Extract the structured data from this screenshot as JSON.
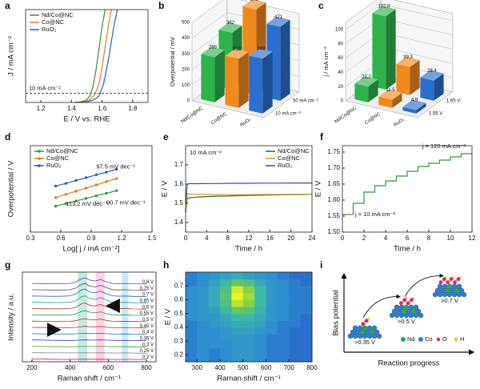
{
  "chart_data": [
    {
      "type": "line",
      "panel": "a",
      "xlabel": "E / V vs. RHE",
      "ylabel": "J / mA cm⁻²",
      "xlim": [
        1.1,
        1.9
      ],
      "xticks": [
        1.2,
        1.4,
        1.6,
        1.8
      ],
      "ylim": [
        0,
        100
      ],
      "legend": "upper left",
      "reference": {
        "value": 10,
        "label": "10 mA cm⁻²",
        "color": "#8b1a1a"
      },
      "series": [
        {
          "name": "Nd/Co@NC",
          "color": "#3a8f3a",
          "x": [
            1.42,
            1.46,
            1.5,
            1.52,
            1.54,
            1.56,
            1.58,
            1.6,
            1.62
          ],
          "values": [
            0,
            0.5,
            3,
            7,
            17,
            35,
            58,
            82,
            100
          ]
        },
        {
          "name": "Co@NC",
          "color": "#e07b2a",
          "x": [
            1.42,
            1.48,
            1.52,
            1.55,
            1.58,
            1.6,
            1.62,
            1.64,
            1.66
          ],
          "values": [
            0,
            0.5,
            3,
            8,
            20,
            38,
            60,
            82,
            100
          ]
        },
        {
          "name": "RuO₂",
          "color": "#2b5fb8",
          "x": [
            1.42,
            1.5,
            1.55,
            1.58,
            1.61,
            1.64,
            1.66,
            1.68,
            1.7
          ],
          "values": [
            0,
            0.5,
            3,
            7,
            20,
            45,
            65,
            85,
            100
          ]
        }
      ]
    },
    {
      "type": "bar3d",
      "panel": "b",
      "ylabel": "Overpotential / mV",
      "categories": [
        "Nd/Co@NC",
        "Co@NC",
        "RuO₂"
      ],
      "colors": [
        "#2db34a",
        "#f08a1c",
        "#2a6fd0"
      ],
      "ylim": [
        0,
        500
      ],
      "yticks": [
        0,
        100,
        200,
        300,
        400,
        500
      ],
      "series": [
        {
          "name": "10 mA cm⁻²",
          "values": [
            288,
            312,
            349
          ]
        },
        {
          "name": "50 mA cm⁻²",
          "values": [
            362,
            546,
            471
          ]
        }
      ]
    },
    {
      "type": "bar3d",
      "panel": "c",
      "ylabel": "j / mA cm⁻²",
      "categories": [
        "Nd/Co@NC",
        "Co@NC",
        "RuO₂"
      ],
      "colors": [
        "#2db34a",
        "#f08a1c",
        "#2a6fd0"
      ],
      "ylim": [
        0,
        110
      ],
      "yticks": [
        0,
        20,
        40,
        60,
        80,
        100
      ],
      "series": [
        {
          "name": "1.55 V",
          "values": [
            22.2,
            11.5,
            4.9
          ]
        },
        {
          "name": "1.65 V",
          "values": [
            102.8,
            39.3,
            28.4
          ]
        }
      ]
    },
    {
      "type": "line",
      "panel": "d",
      "markers": true,
      "xlabel": "Log[ j / mA cm⁻²]",
      "ylabel": "Overpotential / V",
      "xlim": [
        0.3,
        1.5
      ],
      "xticks": [
        0.3,
        0.6,
        0.9,
        1.2,
        1.5
      ],
      "ylim": [
        0.15,
        0.45
      ],
      "legend": "upper left",
      "x": [
        0.55,
        0.65,
        0.75,
        0.85,
        0.95,
        1.05,
        1.15
      ],
      "series": [
        {
          "name": "Nd/Co@NC",
          "color": "#2e9a3a",
          "values": [
            0.24,
            0.249,
            0.258,
            0.267,
            0.276,
            0.285,
            0.294
          ],
          "label": "90.7 mV dec⁻¹"
        },
        {
          "name": "Co@NC",
          "color": "#e07b2a",
          "values": [
            0.27,
            0.281,
            0.292,
            0.303,
            0.314,
            0.325,
            0.336
          ],
          "label": "113.2 mV dec⁻¹"
        },
        {
          "name": "RuO₂",
          "color": "#2b5fb8",
          "values": [
            0.31,
            0.319,
            0.329,
            0.339,
            0.349,
            0.358,
            0.368
          ],
          "label": "97.5 mV dec⁻¹"
        }
      ]
    },
    {
      "type": "line",
      "panel": "e",
      "xlabel": "Time / h",
      "ylabel": "E / V",
      "note": "10 mA cm⁻²",
      "xlim": [
        0,
        24
      ],
      "xticks": [
        0,
        4,
        8,
        12,
        16,
        20,
        24
      ],
      "ylim": [
        1.35,
        1.8
      ],
      "yticks": [
        1.4,
        1.5,
        1.6,
        1.7
      ],
      "legend": "upper right",
      "x": [
        0,
        0.3,
        1,
        2,
        4,
        6,
        8,
        10,
        12,
        14,
        16,
        18,
        20,
        22,
        24
      ],
      "series": [
        {
          "name": "Nd/Co@NC",
          "color": "#2f6e1f",
          "values": [
            1.45,
            1.525,
            1.53,
            1.532,
            1.535,
            1.537,
            1.538,
            1.54,
            1.541,
            1.542,
            1.543,
            1.544,
            1.545,
            1.546,
            1.547
          ]
        },
        {
          "name": "Co@NC",
          "color": "#c89a20",
          "values": [
            1.46,
            1.55,
            1.548,
            1.547,
            1.546,
            1.545,
            1.545,
            1.545,
            1.545,
            1.546,
            1.546,
            1.546,
            1.547,
            1.547,
            1.548
          ]
        },
        {
          "name": "RuO₂",
          "color": "#3050a0",
          "values": [
            1.5,
            1.6,
            1.603,
            1.602,
            1.603,
            1.603,
            1.604,
            1.604,
            1.604,
            1.605,
            1.605,
            1.605,
            1.606,
            1.606,
            1.606
          ]
        }
      ]
    },
    {
      "type": "line",
      "panel": "f",
      "xlabel": "Time / h",
      "ylabel": "E / V",
      "xlim": [
        0,
        12
      ],
      "xticks": [
        0,
        2,
        4,
        6,
        8,
        10,
        12
      ],
      "ylim": [
        1.5,
        1.77
      ],
      "yticks": [
        {
          "value": 1.5,
          "label": "1.50"
        },
        {
          "value": 1.55,
          "label": "1.55"
        },
        {
          "value": 1.6,
          "label": "1.60"
        },
        {
          "value": 1.65,
          "label": "1.65"
        },
        {
          "value": 1.7,
          "label": "1.70"
        },
        {
          "value": 1.75,
          "label": "1.75"
        }
      ],
      "x": [
        0,
        1,
        1,
        2,
        2,
        3,
        3,
        4,
        4,
        5,
        5,
        6,
        6,
        7,
        7,
        8,
        8,
        9,
        9,
        10,
        10,
        11,
        11,
        12
      ],
      "series": [
        {
          "color": "#2e9a3a",
          "start_label": "j = 10 mA cm⁻²",
          "end_label": "j = 120 mA cm⁻²",
          "values": [
            1.555,
            1.555,
            1.59,
            1.59,
            1.625,
            1.625,
            1.645,
            1.645,
            1.66,
            1.66,
            1.675,
            1.675,
            1.69,
            1.69,
            1.705,
            1.705,
            1.715,
            1.715,
            1.725,
            1.725,
            1.735,
            1.735,
            1.745,
            1.745
          ]
        }
      ]
    },
    {
      "type": "waterfall",
      "panel": "g",
      "xlabel": "Raman shift / cm⁻¹",
      "ylabel": "Intensity / a.u.",
      "xlim": [
        150,
        850
      ],
      "xticks": [
        200,
        400,
        600,
        800
      ],
      "bands": [
        {
          "range": [
            440,
            490
          ],
          "color": "#7fd0c0"
        },
        {
          "range": [
            535,
            580
          ],
          "color": "#f59ac8"
        },
        {
          "range": [
            670,
            705
          ],
          "color": "#8ecbef"
        }
      ],
      "x": [
        200,
        250,
        300,
        350,
        400,
        430,
        460,
        480,
        500,
        530,
        560,
        590,
        620,
        650,
        690,
        730,
        800
      ],
      "series": [
        {
          "name": "0.8 V",
          "color": "#6a3d9a",
          "values": [
            0.1,
            0.09,
            0.08,
            0.08,
            0.1,
            0.2,
            0.45,
            0.5,
            0.35,
            0.28,
            0.38,
            0.22,
            0.1,
            0.08,
            0.1,
            0.07,
            0.06
          ]
        },
        {
          "name": "0.75 V",
          "color": "#555555",
          "values": [
            0.1,
            0.09,
            0.08,
            0.08,
            0.1,
            0.22,
            0.5,
            0.55,
            0.38,
            0.3,
            0.42,
            0.24,
            0.11,
            0.08,
            0.1,
            0.07,
            0.06
          ]
        },
        {
          "name": "0.7 V",
          "color": "#2b5fb8",
          "values": [
            0.1,
            0.09,
            0.08,
            0.08,
            0.11,
            0.24,
            0.55,
            0.6,
            0.4,
            0.32,
            0.45,
            0.26,
            0.12,
            0.09,
            0.1,
            0.07,
            0.06
          ]
        },
        {
          "name": "0.65 V",
          "color": "#1f9e89",
          "values": [
            0.1,
            0.09,
            0.08,
            0.08,
            0.1,
            0.22,
            0.5,
            0.56,
            0.38,
            0.3,
            0.44,
            0.25,
            0.11,
            0.08,
            0.1,
            0.07,
            0.06
          ]
        },
        {
          "name": "0.6 V",
          "color": "#b03a2e",
          "values": [
            0.1,
            0.09,
            0.08,
            0.08,
            0.1,
            0.2,
            0.45,
            0.5,
            0.35,
            0.28,
            0.4,
            0.22,
            0.1,
            0.08,
            0.12,
            0.07,
            0.06
          ]
        },
        {
          "name": "0.55 V",
          "color": "#2e8b57",
          "values": [
            0.1,
            0.09,
            0.08,
            0.08,
            0.09,
            0.16,
            0.35,
            0.4,
            0.3,
            0.24,
            0.32,
            0.18,
            0.1,
            0.08,
            0.1,
            0.07,
            0.06
          ]
        },
        {
          "name": "0.5 V",
          "color": "#8b4513",
          "values": [
            0.1,
            0.09,
            0.08,
            0.08,
            0.09,
            0.13,
            0.25,
            0.28,
            0.22,
            0.2,
            0.25,
            0.15,
            0.09,
            0.08,
            0.09,
            0.07,
            0.06
          ]
        },
        {
          "name": "0.45 V",
          "color": "#d62728",
          "values": [
            0.1,
            0.09,
            0.08,
            0.08,
            0.08,
            0.1,
            0.16,
            0.18,
            0.15,
            0.14,
            0.17,
            0.12,
            0.08,
            0.07,
            0.08,
            0.07,
            0.06
          ]
        },
        {
          "name": "0.4 V",
          "color": "#1f77b4",
          "values": [
            0.1,
            0.09,
            0.08,
            0.07,
            0.08,
            0.09,
            0.12,
            0.13,
            0.11,
            0.11,
            0.12,
            0.1,
            0.08,
            0.07,
            0.08,
            0.07,
            0.06
          ]
        },
        {
          "name": "0.35 V",
          "color": "#333399",
          "values": [
            0.1,
            0.09,
            0.08,
            0.07,
            0.07,
            0.08,
            0.09,
            0.1,
            0.09,
            0.09,
            0.1,
            0.09,
            0.08,
            0.07,
            0.07,
            0.06,
            0.06
          ]
        },
        {
          "name": "0.3 V",
          "color": "#2ca02c",
          "values": [
            0.1,
            0.08,
            0.07,
            0.07,
            0.07,
            0.07,
            0.08,
            0.08,
            0.08,
            0.08,
            0.08,
            0.08,
            0.07,
            0.07,
            0.07,
            0.06,
            0.06
          ]
        },
        {
          "name": "0.25 V",
          "color": "#7f7f7f",
          "values": [
            0.09,
            0.08,
            0.07,
            0.07,
            0.07,
            0.07,
            0.07,
            0.08,
            0.07,
            0.07,
            0.08,
            0.07,
            0.07,
            0.06,
            0.07,
            0.06,
            0.05
          ]
        },
        {
          "name": "0.2 V",
          "color": "#c71585",
          "values": [
            0.09,
            0.08,
            0.07,
            0.06,
            0.06,
            0.07,
            0.07,
            0.07,
            0.07,
            0.07,
            0.07,
            0.07,
            0.06,
            0.06,
            0.06,
            0.06,
            0.05
          ]
        }
      ]
    },
    {
      "type": "heatmap",
      "panel": "h",
      "xlabel": "Raman shift / cm⁻¹",
      "ylabel": "E / V",
      "xlim": [
        250,
        800
      ],
      "xticks": [
        300,
        400,
        500,
        600,
        700,
        800
      ],
      "ylim": [
        0.15,
        0.8
      ],
      "yticks": [
        0.2,
        0.3,
        0.4,
        0.5,
        0.6,
        0.7
      ],
      "colormap": [
        "#1f3fbf",
        "#2f8fd0",
        "#3fb8a8",
        "#6ccc4a",
        "#f0f020"
      ],
      "x": [
        275,
        325,
        375,
        425,
        475,
        525,
        575,
        625,
        675,
        725,
        775
      ],
      "y": [
        0.175,
        0.225,
        0.275,
        0.325,
        0.375,
        0.425,
        0.475,
        0.525,
        0.575,
        0.625,
        0.675,
        0.725,
        0.775
      ],
      "z": [
        [
          0.2,
          0.25,
          0.2,
          0.25,
          0.3,
          0.3,
          0.25,
          0.2,
          0.2,
          0.15,
          0.15
        ],
        [
          0.2,
          0.25,
          0.2,
          0.25,
          0.3,
          0.3,
          0.25,
          0.2,
          0.2,
          0.15,
          0.15
        ],
        [
          0.2,
          0.25,
          0.25,
          0.25,
          0.3,
          0.3,
          0.25,
          0.2,
          0.2,
          0.15,
          0.15
        ],
        [
          0.2,
          0.25,
          0.25,
          0.3,
          0.3,
          0.3,
          0.25,
          0.2,
          0.2,
          0.15,
          0.15
        ],
        [
          0.2,
          0.25,
          0.25,
          0.3,
          0.35,
          0.35,
          0.3,
          0.25,
          0.2,
          0.15,
          0.15
        ],
        [
          0.2,
          0.25,
          0.3,
          0.35,
          0.4,
          0.4,
          0.35,
          0.25,
          0.2,
          0.2,
          0.15
        ],
        [
          0.25,
          0.3,
          0.3,
          0.4,
          0.5,
          0.5,
          0.4,
          0.3,
          0.25,
          0.2,
          0.15
        ],
        [
          0.25,
          0.3,
          0.35,
          0.5,
          0.7,
          0.65,
          0.45,
          0.3,
          0.25,
          0.2,
          0.2
        ],
        [
          0.25,
          0.3,
          0.4,
          0.6,
          0.9,
          0.8,
          0.5,
          0.3,
          0.25,
          0.2,
          0.2
        ],
        [
          0.25,
          0.3,
          0.4,
          0.65,
          1.0,
          0.85,
          0.5,
          0.3,
          0.25,
          0.2,
          0.2
        ],
        [
          0.25,
          0.3,
          0.4,
          0.6,
          0.95,
          0.8,
          0.5,
          0.3,
          0.25,
          0.2,
          0.2
        ],
        [
          0.2,
          0.25,
          0.35,
          0.5,
          0.7,
          0.6,
          0.4,
          0.3,
          0.25,
          0.2,
          0.15
        ],
        [
          0.2,
          0.25,
          0.3,
          0.35,
          0.4,
          0.35,
          0.3,
          0.25,
          0.2,
          0.15,
          0.15
        ]
      ]
    },
    {
      "type": "schematic",
      "panel": "i",
      "xlabel": "Reaction progress",
      "ylabel": "Bias potential",
      "stages": [
        ">0.35 V",
        ">0.5 V",
        ">0.7 V"
      ],
      "legend": [
        {
          "name": "Nd",
          "color": "#22b04a"
        },
        {
          "name": "Co",
          "color": "#2a7fd0"
        },
        {
          "name": "O",
          "color": "#e0207a"
        },
        {
          "name": "H",
          "color": "#f0c020"
        }
      ]
    }
  ]
}
